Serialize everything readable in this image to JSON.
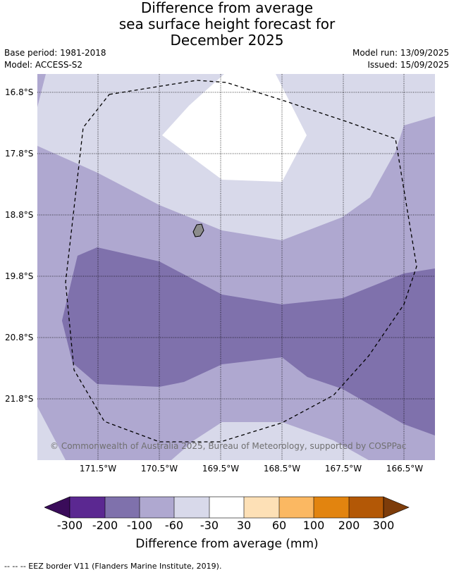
{
  "title": {
    "line1": "Difference from average",
    "line2": "sea surface height forecast for",
    "line3": "December 2025"
  },
  "meta": {
    "base_period": "Base period: 1981-2018",
    "model": "Model: ACCESS-S2",
    "model_run": "Model run: 13/09/2025",
    "issued": "Issued: 15/09/2025"
  },
  "map": {
    "lat_labels": [
      "16.8°S",
      "17.8°S",
      "18.8°S",
      "19.8°S",
      "20.8°S",
      "21.8°S"
    ],
    "lon_labels": [
      "171.5°W",
      "170.5°W",
      "169.5°W",
      "168.5°W",
      "167.5°W",
      "166.5°W"
    ],
    "copyright": "© Commonwealth of Australia 2025, Bureau of Meteorology, supported by COSPPac",
    "colors": {
      "c_m200_m100": "#7f71ac",
      "c_m100_m60": "#afa8d0",
      "c_m60_m30": "#d8d9ea",
      "c_m30_30": "#ffffff",
      "border": "#000000",
      "island": "#8c8c8c"
    }
  },
  "colorbar": {
    "title": "Difference from average (mm)",
    "ticks": [
      "-300",
      "-200",
      "-100",
      "-60",
      "-30",
      "30",
      "60",
      "100",
      "200",
      "300"
    ],
    "under_color": "#3a0c5a",
    "over_color": "#7d3c0a",
    "colors": [
      "#5b2891",
      "#7f71ac",
      "#afa8d0",
      "#d8d9ea",
      "#ffffff",
      "#fde0b6",
      "#fbb862",
      "#e2840f",
      "#b35806"
    ]
  },
  "footnote": "-- -- -- EEZ border V11 (Flanders Marine Institute, 2019)."
}
